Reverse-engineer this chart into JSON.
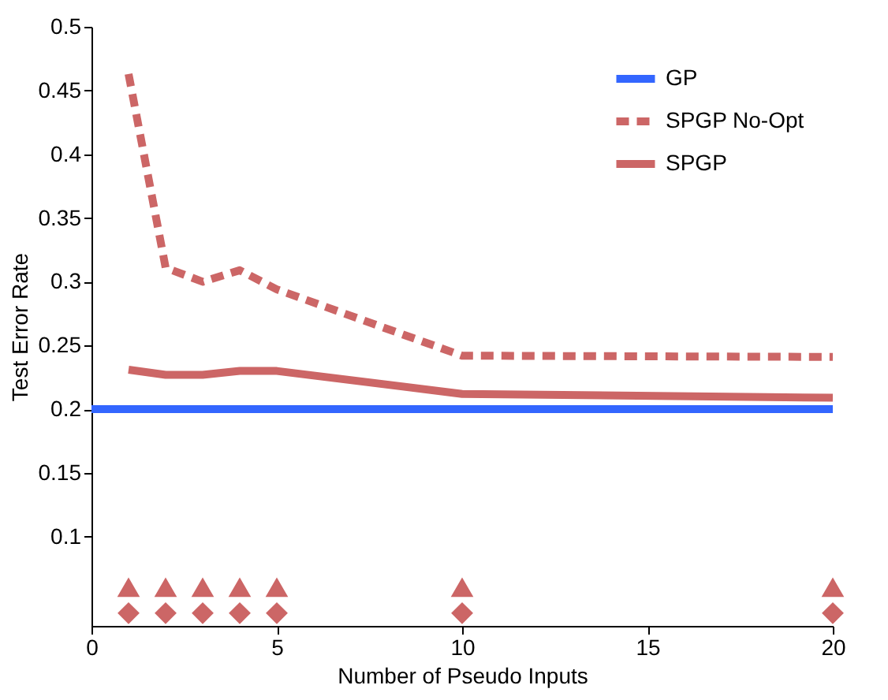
{
  "chart_data": {
    "type": "line",
    "xlabel": "Number of Pseudo Inputs",
    "ylabel": "Test Error Rate",
    "xlim": [
      0,
      20
    ],
    "xticks": [
      0,
      5,
      10,
      15,
      20
    ],
    "ylim": [
      0.03,
      0.5
    ],
    "yticks": [
      0.1,
      0.15,
      0.2,
      0.25,
      0.3,
      0.35,
      0.4,
      0.45,
      0.5
    ],
    "grid": false,
    "legend": "top right",
    "marker": "none",
    "series": [
      {
        "name": "GP",
        "color": "#3366ff",
        "x": [
          0,
          20
        ],
        "values": [
          0.2,
          0.2
        ],
        "line_style": "solid"
      },
      {
        "name": "SPGP No-Opt",
        "color": "#cc6666",
        "x": [
          1,
          2,
          3,
          4,
          5,
          10,
          20
        ],
        "values": [
          0.463,
          0.311,
          0.3,
          0.309,
          0.294,
          0.242,
          0.241
        ],
        "line_style": "dashed"
      },
      {
        "name": "SPGP",
        "color": "#cc6666",
        "x": [
          1,
          2,
          3,
          4,
          5,
          10,
          20
        ],
        "values": [
          0.231,
          0.227,
          0.227,
          0.23,
          0.23,
          0.212,
          0.209
        ],
        "line_style": "solid"
      },
      {
        "type": "scatter",
        "marker": "triangle",
        "color": "#cc6666",
        "x": [
          1,
          2,
          3,
          4,
          5,
          10,
          20
        ],
        "values": [
          0.06,
          0.06,
          0.06,
          0.06,
          0.06,
          0.06,
          0.06
        ]
      },
      {
        "type": "scatter",
        "marker": "diamond",
        "color": "#cc6666",
        "x": [
          1,
          2,
          3,
          4,
          5,
          10,
          20
        ],
        "values": [
          0.04,
          0.04,
          0.04,
          0.04,
          0.04,
          0.04,
          0.04
        ]
      }
    ]
  }
}
